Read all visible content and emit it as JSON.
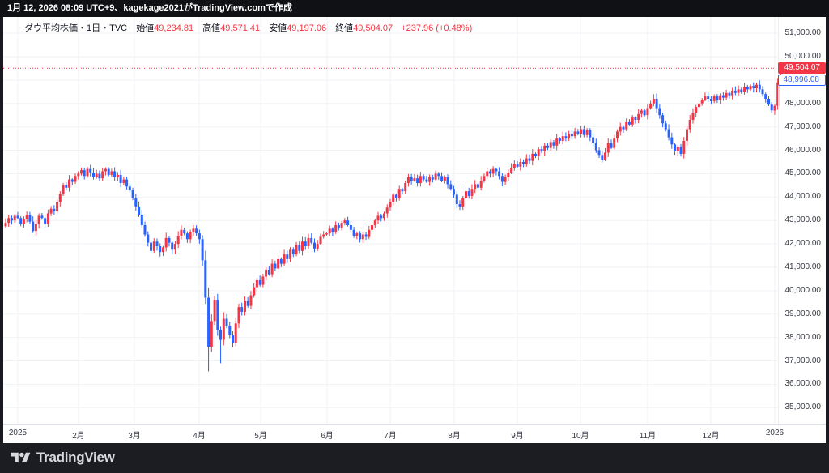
{
  "top_bar": {
    "text": "1月 12, 2026 08:09 UTC+9、kagekage2021がTradingView.comで作成"
  },
  "legend": {
    "title": "ダウ平均株価・1日・TVC",
    "open_label": "始値",
    "open": "49,234.81",
    "high_label": "高値",
    "high": "49,571.41",
    "low_label": "安値",
    "low": "49,197.06",
    "close_label": "終値",
    "close": "49,504.07",
    "change": "+237.96 (+0.48%)"
  },
  "price_labels": {
    "last": "49,504.07",
    "secondary": "48,996.08"
  },
  "footer": {
    "brand": "TradingView"
  },
  "colors": {
    "up": "#f23645",
    "down": "#2962ff",
    "last_price_line": "#f23645",
    "grid": "#f0f2f6",
    "axis_text": "#363a45",
    "panel_bg": "#ffffff",
    "frame": "#17191e"
  },
  "chart_data": {
    "type": "candlestick",
    "title": "ダウ平均株価 (Dow Jones Industrial Average), 1D, TVC",
    "xlabel": "",
    "ylabel": "",
    "grid": true,
    "legend_position": "none",
    "ylim": [
      35000,
      51000
    ],
    "y_tick_step": 1000,
    "y_ticks": [
      [
        35000,
        "35,000.00"
      ],
      [
        36000,
        "36,000.00"
      ],
      [
        37000,
        "37,000.00"
      ],
      [
        38000,
        "38,000.00"
      ],
      [
        39000,
        "39,000.00"
      ],
      [
        40000,
        "40,000.00"
      ],
      [
        41000,
        "41,000.00"
      ],
      [
        42000,
        "42,000.00"
      ],
      [
        43000,
        "43,000.00"
      ],
      [
        44000,
        "44,000.00"
      ],
      [
        45000,
        "45,000.00"
      ],
      [
        46000,
        "46,000.00"
      ],
      [
        47000,
        "47,000.00"
      ],
      [
        48000,
        "48,000.00"
      ],
      [
        49000,
        "49,000.00"
      ],
      [
        50000,
        "50,000.00"
      ],
      [
        51000,
        "51,000.00"
      ]
    ],
    "x_ticks": [
      [
        "2025",
        22
      ],
      [
        "2月",
        97
      ],
      [
        "3月",
        166
      ],
      [
        "4月",
        246
      ],
      [
        "5月",
        322
      ],
      [
        "6月",
        404
      ],
      [
        "7月",
        482
      ],
      [
        "8月",
        561
      ],
      [
        "9月",
        639
      ],
      [
        "10月",
        717
      ],
      [
        "11月",
        800
      ],
      [
        "12月",
        878
      ],
      [
        "2026",
        957
      ]
    ],
    "last_price": 49504.07,
    "secondary_price": 48996.08,
    "first_open": 42750,
    "final_candle": {
      "open": 49234.81,
      "high": 49571.41,
      "low": 49197.06,
      "close": 49504.07
    },
    "wick_low_overrides": {
      "67": 36550,
      "71": 36900
    },
    "closes_by_segment": [
      [
        42900,
        43100,
        43000,
        43200
      ],
      [
        43100,
        42850,
        43050,
        43250,
        42950,
        42550,
        42850,
        43200,
        43100,
        42850,
        43300,
        43500,
        43400,
        43800,
        44150,
        44500,
        44400,
        44750,
        44650,
        44900
      ],
      [
        45000,
        45150,
        44900,
        45200,
        45050,
        44850,
        45000,
        44800,
        45100,
        45200,
        44950,
        45100,
        44850,
        44950,
        44600,
        44750,
        44450,
        44300,
        43950
      ],
      [
        43600,
        43250,
        42800,
        42400,
        42050,
        41700,
        42100,
        41900,
        41650,
        41850,
        42250,
        42050,
        41750,
        42000,
        42350,
        42600,
        42450,
        42200,
        42500,
        42650,
        42450
      ],
      [
        42200,
        41300,
        39700,
        37600,
        38700,
        39600,
        38300,
        37900,
        38800,
        38500,
        38100,
        37750,
        38600,
        39300,
        39100,
        39550,
        39350,
        39800,
        40150,
        40450,
        40250
      ],
      [
        40600,
        40900,
        40700,
        41150,
        40950,
        41350,
        41150,
        41550,
        41350,
        41750,
        41550,
        41950,
        41700,
        42100,
        41900,
        42250,
        42050,
        41800,
        42000,
        42300,
        42400
      ],
      [
        42450,
        42650,
        42500,
        42800,
        42700,
        42900,
        43000,
        42800,
        42600,
        42350,
        42450,
        42200,
        42400,
        42300,
        42600,
        42800,
        43000,
        43200,
        43100,
        43300
      ],
      [
        43550,
        43800,
        44100,
        43950,
        44350,
        44250,
        44600,
        44850,
        44700,
        44800,
        44600,
        44900,
        44750,
        44650,
        44850,
        44750,
        45000,
        44900,
        44700,
        44850,
        44550,
        44350
      ],
      [
        44100,
        43700,
        43600,
        43950,
        44250,
        44050,
        44350,
        44550,
        44400,
        44700,
        44900,
        45100,
        45000,
        45200,
        45100,
        44900,
        44650,
        44850,
        45050,
        45250,
        45400
      ],
      [
        45300,
        45500,
        45400,
        45650,
        45550,
        45850,
        45750,
        46050,
        45950,
        46200,
        46100,
        46350,
        46200,
        46500,
        46400,
        46600,
        46500,
        46700,
        46600,
        46800,
        46700
      ],
      [
        46900,
        46650,
        46850,
        46550,
        46300,
        46000,
        45800,
        45600,
        45900,
        46300,
        46100,
        46500,
        46800,
        47000,
        46900,
        47200,
        47100,
        47400,
        47300,
        47550,
        47700,
        47500,
        47800
      ],
      [
        48000,
        48200,
        47800,
        47500,
        47150,
        46900,
        46550,
        46250,
        45950,
        46150,
        45850,
        46400,
        46900,
        47300,
        47600,
        47850,
        48000,
        48150,
        48300,
        48200,
        48100
      ],
      [
        48300,
        48150,
        48350,
        48250,
        48450,
        48350,
        48550,
        48450,
        48600,
        48500,
        48700,
        48600,
        48750,
        48650,
        48800,
        48600,
        48400,
        48200,
        47950,
        47700,
        47900
      ],
      [
        48900,
        49504.07
      ]
    ]
  }
}
